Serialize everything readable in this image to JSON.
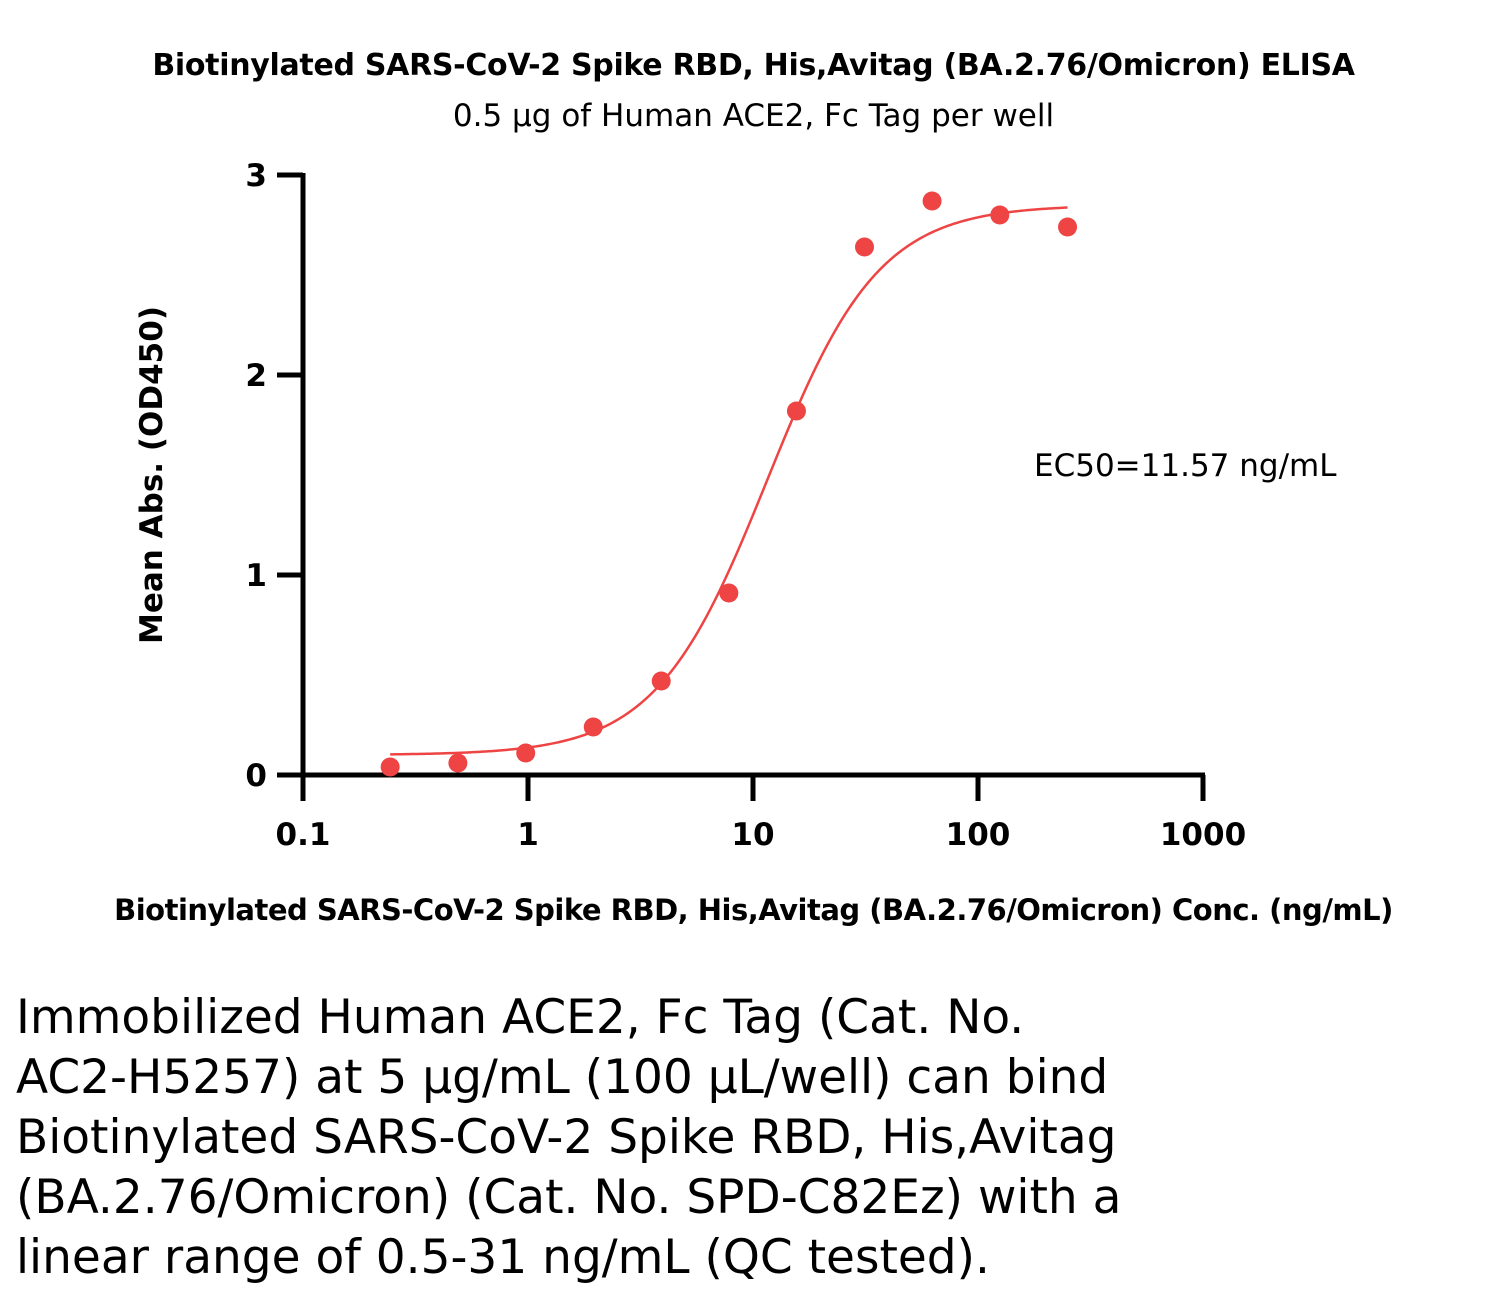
{
  "chart_data": {
    "type": "scatter",
    "title": "Biotinylated SARS-CoV-2 Spike RBD, His,Avitag (BA.2.76/Omicron) ELISA",
    "subtitle": "0.5 μg of Human ACE2, Fc Tag per well",
    "xlabel": "Biotinylated SARS-CoV-2 Spike RBD, His,Avitag (BA.2.76/Omicron) Conc. (ng/mL)",
    "ylabel": "Mean Abs. (OD450)",
    "x_scale": "log",
    "xlim": [
      0.1,
      1000
    ],
    "ylim": [
      0,
      3
    ],
    "x_ticks": [
      "0.1",
      "1",
      "10",
      "100",
      "1000"
    ],
    "y_ticks": [
      "0",
      "1",
      "2",
      "3"
    ],
    "grid": false,
    "annotation": "EC50=11.57 ng/mL",
    "color": "#ee4444",
    "series": [
      {
        "x": [
          0.244,
          0.488,
          0.977,
          1.95,
          3.91,
          7.81,
          15.6,
          31.3,
          62.5,
          125,
          250
        ],
        "y": [
          0.04,
          0.06,
          0.11,
          0.24,
          0.47,
          0.91,
          1.82,
          2.64,
          2.87,
          2.8,
          2.74
        ]
      }
    ],
    "fit": {
      "model": "4PL",
      "bottom": 0.1,
      "top": 2.85,
      "ec50": 11.57,
      "hill": 1.75,
      "x_range": [
        0.244,
        250
      ]
    }
  },
  "caption_lines": [
    "Immobilized Human ACE2, Fc Tag (Cat. No.",
    "AC2-H5257) at 5 μg/mL (100 μL/well) can bind",
    "Biotinylated SARS-CoV-2 Spike RBD, His,Avitag",
    "(BA.2.76/Omicron) (Cat. No. SPD-C82Ez) with a",
    "linear range of 0.5-31 ng/mL (QC tested)."
  ]
}
